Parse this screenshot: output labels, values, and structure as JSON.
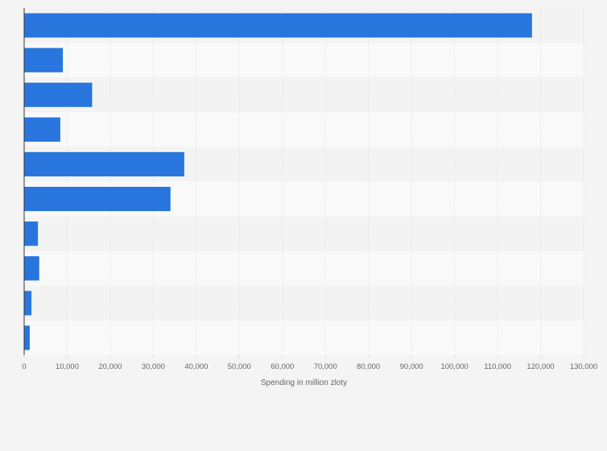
{
  "chart_data": {
    "type": "bar",
    "orientation": "horizontal",
    "title": "",
    "xlabel": "Spending in million zloty",
    "ylabel": "",
    "categories": [
      "",
      "",
      "",
      "",
      "",
      "",
      "",
      "",
      "",
      ""
    ],
    "series": [
      {
        "values": [
          118000,
          9000,
          15800,
          8400,
          37200,
          34000,
          3200,
          3500,
          1700,
          1300
        ]
      }
    ],
    "xlim": [
      0,
      130000
    ],
    "x_ticks": [
      0,
      10000,
      20000,
      30000,
      40000,
      50000,
      60000,
      70000,
      80000,
      90000,
      100000,
      110000,
      120000,
      130000
    ],
    "x_tick_labels": [
      "0",
      "10,000",
      "20,000",
      "30,000",
      "40,000",
      "50,000",
      "60,000",
      "70,000",
      "80,000",
      "90,000",
      "100,000",
      "110,000",
      "120,000",
      "130,000"
    ],
    "grid": true,
    "legend": "none",
    "colors": {
      "bar": "#2876dd",
      "background": "#f4f4f4",
      "band_light": "#f9f9f9",
      "band_dark": "#f3f3f3",
      "grid": "#dedede",
      "axis": "#333333",
      "text": "#666666"
    }
  }
}
